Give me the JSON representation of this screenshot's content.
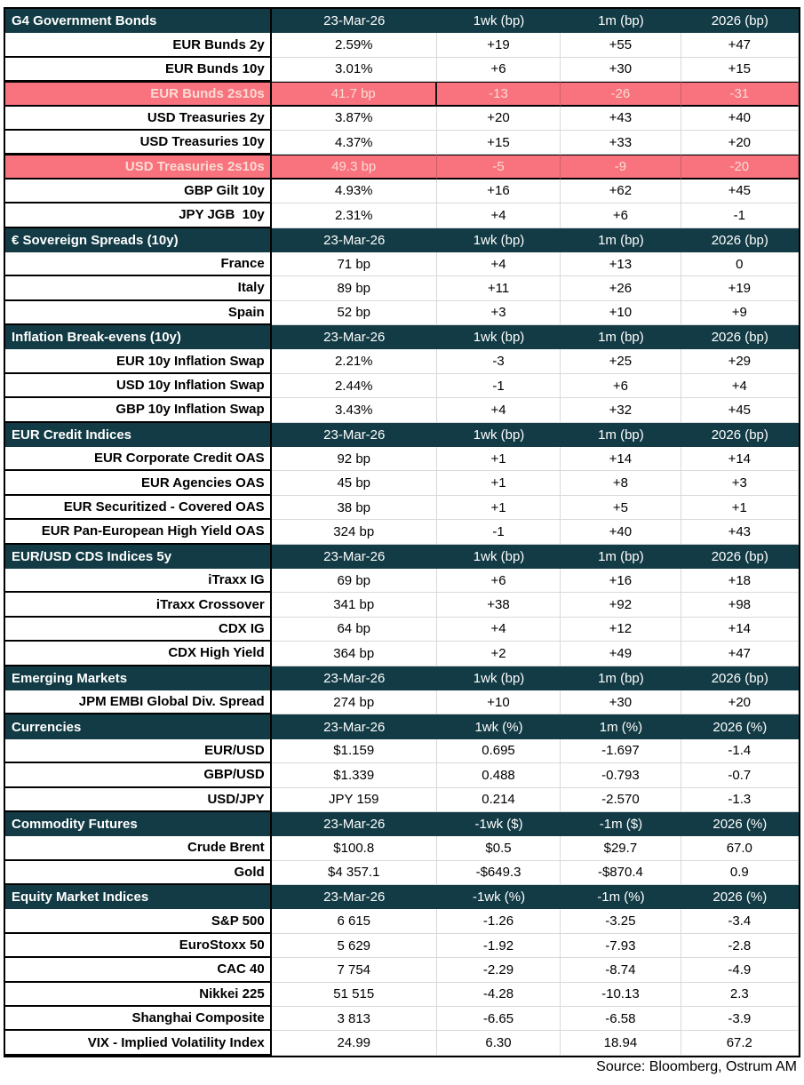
{
  "colors": {
    "header_bg": "#123B45",
    "header_text": "#FFFFFF",
    "highlight_bg": "#F9737F",
    "highlight_text": "#FADCD3",
    "grid": "#D9D9D9",
    "border": "#000000",
    "text": "#000000"
  },
  "footer": "Source: Bloomberg, Ostrum AM",
  "chart_data": {
    "type": "table",
    "date_column": "23-Mar-26",
    "sections": [
      {
        "title": "G4 Government Bonds",
        "columns": [
          "23-Mar-26",
          "1wk (bp)",
          "1m (bp)",
          "2026 (bp)"
        ],
        "rows": [
          {
            "label": "EUR Bunds 2y",
            "values": [
              "2.59%",
              "+19",
              "+55",
              "+47"
            ],
            "highlight": false
          },
          {
            "label": "EUR Bunds 10y",
            "values": [
              "3.01%",
              "+6",
              "+30",
              "+15"
            ],
            "highlight": false
          },
          {
            "label": "EUR Bunds 2s10s",
            "values": [
              "41.7 bp",
              "-13",
              "-26",
              "-31"
            ],
            "highlight": true,
            "cursor": true
          },
          {
            "label": "USD Treasuries 2y",
            "values": [
              "3.87%",
              "+20",
              "+43",
              "+40"
            ],
            "highlight": false
          },
          {
            "label": "USD Treasuries 10y",
            "values": [
              "4.37%",
              "+15",
              "+33",
              "+20"
            ],
            "highlight": false
          },
          {
            "label": "USD Treasuries 2s10s",
            "values": [
              "49.3 bp",
              "-5",
              "-9",
              "-20"
            ],
            "highlight": true
          },
          {
            "label": "GBP Gilt 10y",
            "values": [
              "4.93%",
              "+16",
              "+62",
              "+45"
            ],
            "highlight": false
          },
          {
            "label": "JPY JGB  10y",
            "values": [
              "2.31%",
              "+4",
              "+6",
              "-1"
            ],
            "highlight": false
          }
        ]
      },
      {
        "title": "€ Sovereign Spreads (10y)",
        "columns": [
          "23-Mar-26",
          "1wk (bp)",
          "1m (bp)",
          "2026 (bp)"
        ],
        "rows": [
          {
            "label": "France",
            "values": [
              "71 bp",
              "+4",
              "+13",
              "0"
            ],
            "highlight": false
          },
          {
            "label": "Italy",
            "values": [
              "89 bp",
              "+11",
              "+26",
              "+19"
            ],
            "highlight": false
          },
          {
            "label": "Spain",
            "values": [
              "52 bp",
              "+3",
              "+10",
              "+9"
            ],
            "highlight": false
          }
        ]
      },
      {
        "title": "Inflation Break-evens (10y)",
        "columns": [
          "23-Mar-26",
          "1wk (bp)",
          "1m (bp)",
          "2026 (bp)"
        ],
        "rows": [
          {
            "label": "EUR 10y Inflation Swap",
            "values": [
              "2.21%",
              "-3",
              "+25",
              "+29"
            ],
            "highlight": false
          },
          {
            "label": "USD 10y Inflation Swap",
            "values": [
              "2.44%",
              "-1",
              "+6",
              "+4"
            ],
            "highlight": false
          },
          {
            "label": "GBP 10y Inflation Swap",
            "values": [
              "3.43%",
              "+4",
              "+32",
              "+45"
            ],
            "highlight": false
          }
        ]
      },
      {
        "title": "EUR Credit Indices",
        "columns": [
          "23-Mar-26",
          "1wk (bp)",
          "1m (bp)",
          "2026 (bp)"
        ],
        "rows": [
          {
            "label": "EUR Corporate Credit OAS",
            "values": [
              "92 bp",
              "+1",
              "+14",
              "+14"
            ],
            "highlight": false
          },
          {
            "label": "EUR Agencies OAS",
            "values": [
              "45 bp",
              "+1",
              "+8",
              "+3"
            ],
            "highlight": false
          },
          {
            "label": "EUR Securitized - Covered OAS",
            "values": [
              "38 bp",
              "+1",
              "+5",
              "+1"
            ],
            "highlight": false
          },
          {
            "label": "EUR Pan-European High Yield OAS",
            "values": [
              "324 bp",
              "-1",
              "+40",
              "+43"
            ],
            "highlight": false
          }
        ]
      },
      {
        "title": "EUR/USD CDS Indices 5y",
        "columns": [
          "23-Mar-26",
          "1wk (bp)",
          "1m (bp)",
          "2026 (bp)"
        ],
        "rows": [
          {
            "label": "iTraxx IG",
            "values": [
              "69 bp",
              "+6",
              "+16",
              "+18"
            ],
            "highlight": false
          },
          {
            "label": "iTraxx Crossover",
            "values": [
              "341 bp",
              "+38",
              "+92",
              "+98"
            ],
            "highlight": false
          },
          {
            "label": "CDX IG",
            "values": [
              "64 bp",
              "+4",
              "+12",
              "+14"
            ],
            "highlight": false
          },
          {
            "label": "CDX High Yield",
            "values": [
              "364 bp",
              "+2",
              "+49",
              "+47"
            ],
            "highlight": false
          }
        ]
      },
      {
        "title": "Emerging Markets",
        "columns": [
          "23-Mar-26",
          "1wk (bp)",
          "1m (bp)",
          "2026 (bp)"
        ],
        "rows": [
          {
            "label": "JPM EMBI Global Div. Spread",
            "values": [
              "274 bp",
              "+10",
              "+30",
              "+20"
            ],
            "highlight": false
          }
        ]
      },
      {
        "title": "Currencies",
        "columns": [
          "23-Mar-26",
          "1wk (%)",
          "1m (%)",
          "2026 (%)"
        ],
        "rows": [
          {
            "label": "EUR/USD",
            "values": [
              "$1.159",
              "0.695",
              "-1.697",
              "-1.4"
            ],
            "highlight": false
          },
          {
            "label": "GBP/USD",
            "values": [
              "$1.339",
              "0.488",
              "-0.793",
              "-0.7"
            ],
            "highlight": false
          },
          {
            "label": "USD/JPY",
            "values": [
              "JPY 159",
              "0.214",
              "-2.570",
              "-1.3"
            ],
            "highlight": false
          }
        ]
      },
      {
        "title": "Commodity Futures",
        "columns": [
          "23-Mar-26",
          "-1wk ($)",
          "-1m ($)",
          "2026 (%)"
        ],
        "rows": [
          {
            "label": "Crude Brent",
            "values": [
              "$100.8",
              "$0.5",
              "$29.7",
              "67.0"
            ],
            "highlight": false
          },
          {
            "label": "Gold",
            "values": [
              "$4 357.1",
              "-$649.3",
              "-$870.4",
              "0.9"
            ],
            "highlight": false
          }
        ]
      },
      {
        "title": "Equity Market Indices",
        "columns": [
          "23-Mar-26",
          "-1wk (%)",
          "-1m (%)",
          "2026 (%)"
        ],
        "rows": [
          {
            "label": "S&P 500",
            "values": [
              "6 615",
              "-1.26",
              "-3.25",
              "-3.4"
            ],
            "highlight": false
          },
          {
            "label": "EuroStoxx 50",
            "values": [
              "5 629",
              "-1.92",
              "-7.93",
              "-2.8"
            ],
            "highlight": false
          },
          {
            "label": "CAC 40",
            "values": [
              "7 754",
              "-2.29",
              "-8.74",
              "-4.9"
            ],
            "highlight": false
          },
          {
            "label": "Nikkei 225",
            "values": [
              "51 515",
              "-4.28",
              "-10.13",
              "2.3"
            ],
            "highlight": false
          },
          {
            "label": "Shanghai Composite",
            "values": [
              "3 813",
              "-6.65",
              "-6.58",
              "-3.9"
            ],
            "highlight": false
          },
          {
            "label": "VIX - Implied Volatility Index",
            "values": [
              "24.99",
              "6.30",
              "18.94",
              "67.2"
            ],
            "highlight": false
          }
        ]
      }
    ],
    "footer": "Source: Bloomberg, Ostrum AM"
  }
}
